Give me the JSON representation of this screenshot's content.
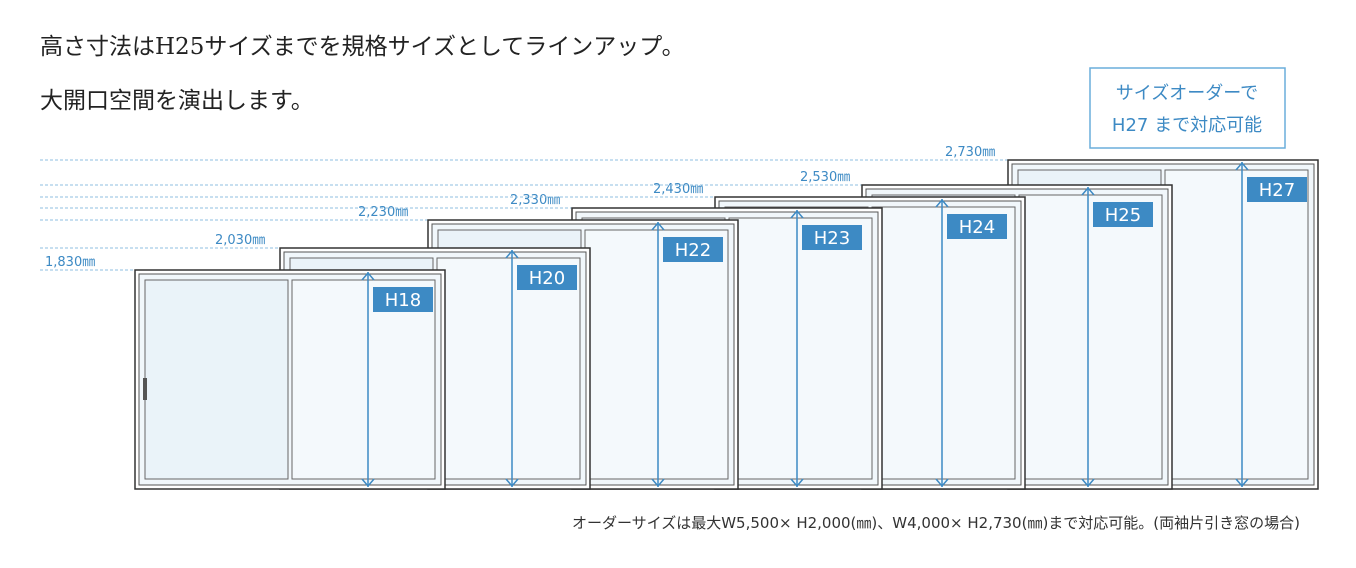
{
  "header": {
    "lines": [
      "高さ寸法はH25サイズまでを規格サイズとしてラインアップ。",
      "大開口空間を演出します。"
    ]
  },
  "callout": {
    "lines": [
      "サイズオーダーで",
      "H27 まで対応可能"
    ]
  },
  "windows": [
    {
      "label": "H18",
      "height": "1,830㎜"
    },
    {
      "label": "H20",
      "height": "2,030㎜"
    },
    {
      "label": "H22",
      "height": "2,230㎜"
    },
    {
      "label": "H23",
      "height": "2,330㎜"
    },
    {
      "label": "H24",
      "height": "2,430㎜"
    },
    {
      "label": "H25",
      "height": "2,530㎜"
    },
    {
      "label": "H27",
      "height": "2,730㎜"
    }
  ],
  "footnote": "オーダーサイズは最大W5,500× H2,000(㎜)、W4,000× H2,730(㎜)まで対応可能。(両袖片引き窓の場合)"
}
